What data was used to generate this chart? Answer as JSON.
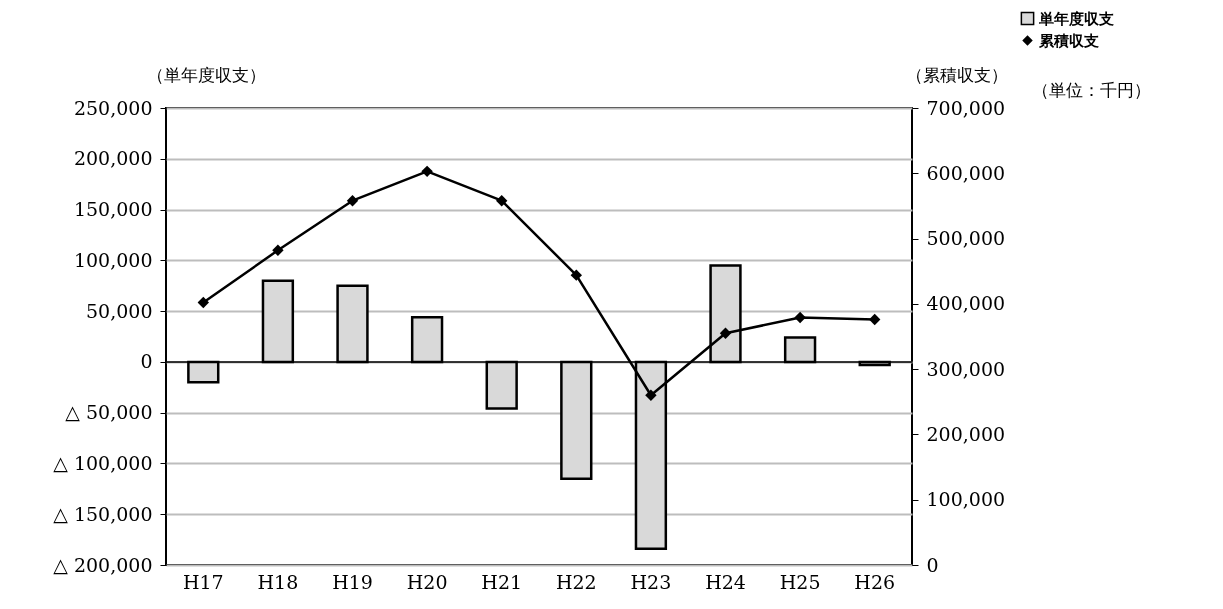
{
  "chart_data": {
    "type": "bar",
    "ylabel": "（単年度収支）",
    "y2label": "（累積収支）",
    "annotations": [
      "（単位：千円）"
    ],
    "categories": [
      "H17",
      "H18",
      "H19",
      "H20",
      "H21",
      "H22",
      "H23",
      "H24",
      "H25",
      "H26"
    ],
    "series": [
      {
        "name": "単年度収支",
        "color": "#d9d9d9",
        "values": [
          -20000,
          80000,
          75000,
          44000,
          -46000,
          -115000,
          -184000,
          95000,
          24000,
          -3000
        ]
      },
      {
        "name": "累積収支",
        "type": "line",
        "axis": "y2",
        "color": "#000000",
        "values": [
          402000,
          482000,
          558000,
          603000,
          558000,
          444000,
          260000,
          355000,
          379000,
          376000
        ]
      }
    ],
    "ylim": [
      -200000,
      250000
    ],
    "yticks": [
      {
        "value": 250000,
        "label": "250,000"
      },
      {
        "value": 200000,
        "label": "200,000"
      },
      {
        "value": 150000,
        "label": "150,000"
      },
      {
        "value": 100000,
        "label": "100,000"
      },
      {
        "value": 50000,
        "label": "50,000"
      },
      0,
      {
        "value": -50000,
        "label": "△ 50,000"
      },
      {
        "value": -100000,
        "label": "△ 100,000"
      },
      {
        "value": -150000,
        "label": "△ 150,000"
      },
      {
        "value": -200000,
        "label": "△ 200,000"
      }
    ],
    "y2lim": [
      0,
      700000
    ],
    "y2ticks": [
      0,
      {
        "value": 100000,
        "label": "100,000"
      },
      {
        "value": 200000,
        "label": "200,000"
      },
      {
        "value": 300000,
        "label": "300,000"
      },
      {
        "value": 400000,
        "label": "400,000"
      },
      {
        "value": 500000,
        "label": "500,000"
      },
      {
        "value": 600000,
        "label": "600,000"
      },
      {
        "value": 700000,
        "label": "700,000"
      }
    ],
    "grid": "y",
    "legend": "top right",
    "marker": "diamond",
    "line_style": "solid"
  }
}
